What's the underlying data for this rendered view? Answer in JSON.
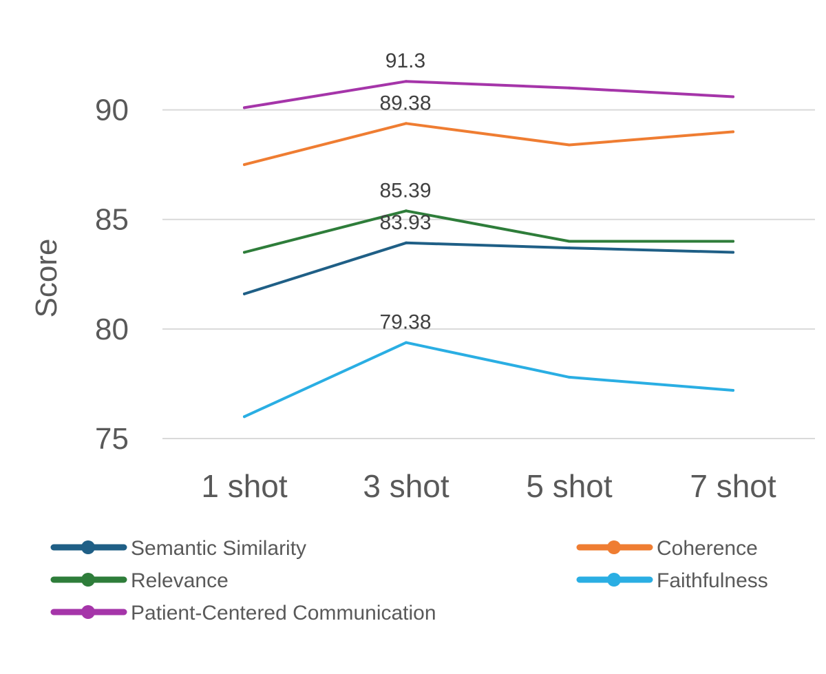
{
  "chart_data": {
    "type": "line",
    "title": "",
    "xlabel": "",
    "ylabel": "Score",
    "categories": [
      "1 shot",
      "3 shot",
      "5 shot",
      "7 shot"
    ],
    "ylim": [
      75,
      92.5
    ],
    "yticks": [
      75,
      80,
      85,
      90
    ],
    "grid": true,
    "legend_position": "bottom",
    "series": [
      {
        "name": "Semantic Similarity",
        "color": "#1f5f86",
        "values": [
          81.6,
          83.93,
          83.7,
          83.5
        ],
        "labels": [
          "",
          "83.93",
          "",
          ""
        ]
      },
      {
        "name": "Coherence",
        "color": "#ef7d32",
        "values": [
          87.5,
          89.38,
          88.4,
          89.0
        ],
        "labels": [
          "",
          "89.38",
          "",
          ""
        ]
      },
      {
        "name": "Relevance",
        "color": "#2e7d3a",
        "values": [
          83.5,
          85.39,
          84.0,
          84.0
        ],
        "labels": [
          "",
          "85.39",
          "",
          ""
        ]
      },
      {
        "name": "Faithfulness",
        "color": "#2aaee3",
        "values": [
          76.0,
          79.38,
          77.8,
          77.2
        ],
        "labels": [
          "",
          "79.38",
          "",
          ""
        ]
      },
      {
        "name": "Patient-Centered Communication",
        "color": "#a535a9",
        "values": [
          90.1,
          91.3,
          91.0,
          90.6
        ],
        "labels": [
          "",
          "91.3",
          "",
          ""
        ]
      }
    ]
  }
}
